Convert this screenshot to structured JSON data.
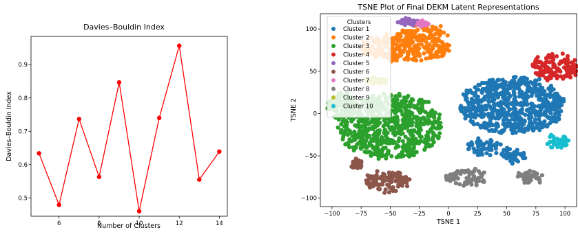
{
  "chart_data": [
    {
      "type": "line",
      "title": "Davies–Bouldin Index",
      "xlabel": "Number of Clusters",
      "ylabel": "Davies–Bouldin Index",
      "xlim": [
        4.6,
        14.4
      ],
      "ylim": [
        0.445,
        0.985
      ],
      "xticks": [
        6,
        8,
        10,
        12,
        14
      ],
      "yticks": [
        0.5,
        0.6,
        0.7,
        0.8,
        0.9
      ],
      "xtick_labels": [
        "6",
        "8",
        "10",
        "12",
        "14"
      ],
      "ytick_labels": [
        "0.5",
        "0.6",
        "0.7",
        "0.8",
        "0.9"
      ],
      "grid": false,
      "series": [
        {
          "color": "#ff0000",
          "marker": "circle",
          "x": [
            5,
            6,
            7,
            8,
            9,
            10,
            11,
            12,
            13,
            14
          ],
          "y": [
            0.634,
            0.479,
            0.737,
            0.563,
            0.847,
            0.46,
            0.74,
            0.957,
            0.555,
            0.639
          ]
        }
      ]
    },
    {
      "type": "scatter",
      "title": "TSNE Plot of Final DEKM Latent Representations",
      "xlabel": "TSNE 1",
      "ylabel": "TSNE 2",
      "xlim": [
        -110,
        110
      ],
      "ylim": [
        -110,
        118
      ],
      "xticks": [
        -100,
        -75,
        -50,
        -25,
        0,
        25,
        50,
        75,
        100
      ],
      "yticks": [
        -100,
        -50,
        0,
        50,
        100
      ],
      "xtick_labels": [
        "−100",
        "−75",
        "−50",
        "−25",
        "0",
        "25",
        "50",
        "75",
        "100"
      ],
      "ytick_labels": [
        "−100",
        "−50",
        "0",
        "50",
        "100"
      ],
      "grid": false,
      "legend": {
        "title": "Clusters",
        "placement": "upper-left"
      },
      "series": [
        {
          "name": "Cluster 1",
          "color": "#1f77b4",
          "regions": [
            [
              55,
              10,
              45,
              33
            ],
            [
              30,
              -40,
              14,
              9
            ],
            [
              55,
              -50,
              10,
              9
            ]
          ]
        },
        {
          "name": "Cluster 2",
          "color": "#ff7f0e",
          "regions": [
            [
              -38,
              78,
              38,
              16
            ],
            [
              -20,
              95,
              20,
              7
            ]
          ]
        },
        {
          "name": "Cluster 3",
          "color": "#2ca02c",
          "regions": [
            [
              -50,
              -15,
              44,
              38
            ],
            [
              -92,
              10,
              12,
              16
            ]
          ]
        },
        {
          "name": "Cluster 4",
          "color": "#d62728",
          "regions": [
            [
              92,
              54,
              20,
              15
            ]
          ]
        },
        {
          "name": "Cluster 5",
          "color": "#9467bd",
          "regions": [
            [
              -33,
              108,
              9,
              3
            ]
          ]
        },
        {
          "name": "Cluster 6",
          "color": "#8c564b",
          "regions": [
            [
              -53,
              -80,
              20,
              12
            ],
            [
              -78,
              -60,
              4,
              4
            ]
          ]
        },
        {
          "name": "Cluster 7",
          "color": "#e377c2",
          "regions": [
            [
              -22,
              106,
              3,
              2
            ]
          ]
        },
        {
          "name": "Cluster 8",
          "color": "#7f7f7f",
          "regions": [
            [
              15,
              -75,
              18,
              9
            ],
            [
              70,
              -75,
              10,
              7
            ]
          ]
        },
        {
          "name": "Cluster 9",
          "color": "#bcbd22",
          "regions": [
            [
              -63,
              39,
              10,
              3
            ]
          ]
        },
        {
          "name": "Cluster 10",
          "color": "#17becf",
          "regions": [
            [
              93,
              -32,
              10,
              7
            ]
          ]
        }
      ]
    }
  ]
}
